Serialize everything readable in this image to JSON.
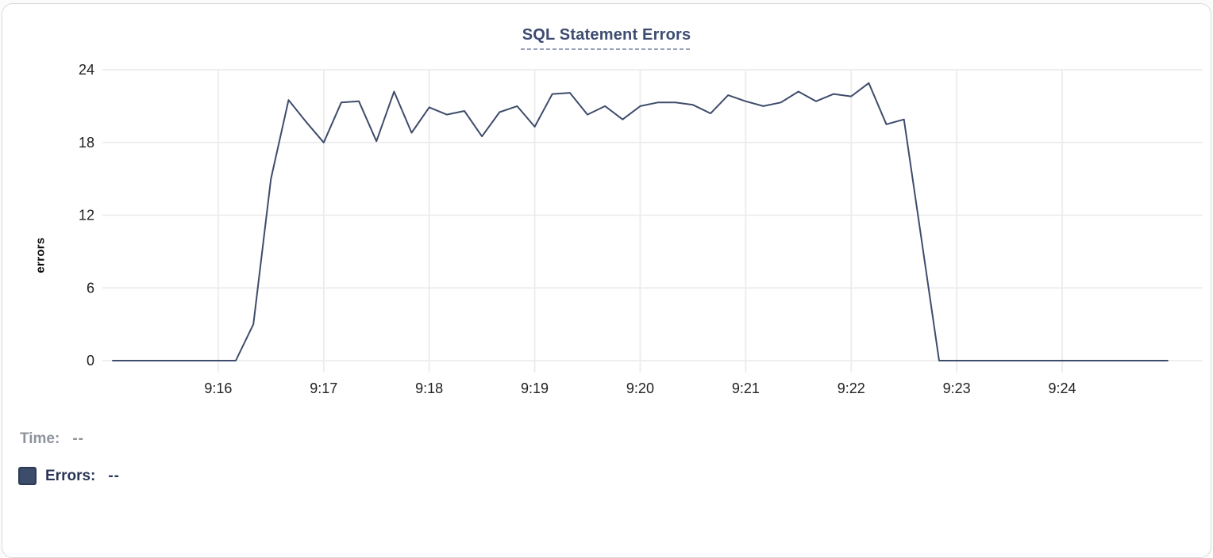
{
  "card": {
    "title": "SQL Statement Errors"
  },
  "readout": {
    "time_label": "Time:",
    "time_value": "--",
    "errors_label": "Errors:",
    "errors_value": "--"
  },
  "colors": {
    "series": "#3E4C6B",
    "series_swatch_border": "#2C3A55",
    "title": "#3D4C70",
    "title_underline": "#98A2B8",
    "grid": "#ECECEC",
    "axis_text": "#222222",
    "muted_text": "#8F939B",
    "legend_text": "#2A3655",
    "card_border": "#DADADA"
  },
  "chart_data": {
    "type": "line",
    "title": "SQL Statement Errors",
    "xlabel": "",
    "ylabel": "errors",
    "grid": true,
    "legend_position": "bottom-left readout",
    "ylim": [
      0,
      24
    ],
    "y_ticks": [
      0,
      6,
      12,
      18,
      24
    ],
    "x_tick_labels": [
      "9:16",
      "9:17",
      "9:18",
      "9:19",
      "9:20",
      "9:21",
      "9:22",
      "9:23",
      "9:24"
    ],
    "x_range": [
      "9:15:00",
      "9:25:19"
    ],
    "sample_interval_seconds": 10,
    "series": [
      {
        "name": "Errors",
        "color": "#3E4C6B",
        "times": [
          "9:15:00",
          "9:15:10",
          "9:15:20",
          "9:15:30",
          "9:15:40",
          "9:15:50",
          "9:16:00",
          "9:16:10",
          "9:16:20",
          "9:16:30",
          "9:16:40",
          "9:16:50",
          "9:17:00",
          "9:17:10",
          "9:17:20",
          "9:17:30",
          "9:17:40",
          "9:17:50",
          "9:18:00",
          "9:18:10",
          "9:18:20",
          "9:18:30",
          "9:18:40",
          "9:18:50",
          "9:19:00",
          "9:19:10",
          "9:19:20",
          "9:19:30",
          "9:19:40",
          "9:19:50",
          "9:20:00",
          "9:20:10",
          "9:20:20",
          "9:20:30",
          "9:20:40",
          "9:20:50",
          "9:21:00",
          "9:21:10",
          "9:21:20",
          "9:21:30",
          "9:21:40",
          "9:21:50",
          "9:22:00",
          "9:22:10",
          "9:22:20",
          "9:22:30",
          "9:22:40",
          "9:22:50",
          "9:23:00",
          "9:23:10",
          "9:23:20",
          "9:23:30",
          "9:23:40",
          "9:23:50",
          "9:24:00",
          "9:24:10",
          "9:24:20",
          "9:24:30",
          "9:24:40",
          "9:24:50",
          "9:25:00"
        ],
        "values": [
          0,
          0,
          0,
          0,
          0,
          0,
          0,
          0,
          3,
          15,
          21.5,
          19.7,
          18,
          21.3,
          21.4,
          18.1,
          22.2,
          18.8,
          20.9,
          20.3,
          20.6,
          18.5,
          20.5,
          21,
          19.3,
          22,
          22.1,
          20.3,
          21,
          19.9,
          21,
          21.3,
          21.3,
          21.1,
          20.4,
          21.9,
          21.4,
          21,
          21.3,
          22.2,
          21.4,
          22,
          21.8,
          22.9,
          19.5,
          19.9,
          10,
          0,
          0,
          0,
          0,
          0,
          0,
          0,
          0,
          0,
          0,
          0,
          0,
          0,
          0
        ]
      }
    ]
  }
}
